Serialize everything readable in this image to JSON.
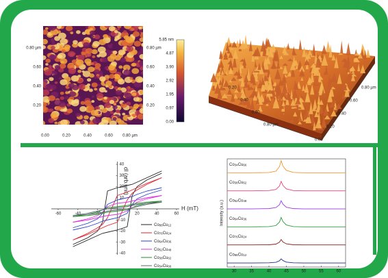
{
  "afm_2d": {
    "y_tick_labels": [
      "0.80 µm",
      "0.60",
      "0.40",
      "0.20"
    ],
    "x_tick_labels": [
      "0.00",
      "0.20",
      "0.40",
      "0.60",
      "0.80 µm"
    ]
  },
  "colorbar": {
    "ticks": [
      "5.85 nm",
      "4.87",
      "3.90",
      "2.92",
      "1.95",
      "0.97",
      "0.00"
    ]
  },
  "afm_3d": {
    "left_labels": [
      "0.20",
      "0.40",
      "0.60",
      "0.80 µm"
    ],
    "right_labels": [
      "0.80 µm",
      "0.60",
      "0.40",
      "0.20",
      "0.00"
    ]
  },
  "chart_data": [
    {
      "type": "line",
      "x_label": "H (mT)",
      "y_label": "dI (arb.unit)",
      "xlim": [
        -60,
        60
      ],
      "ylim": [
        -40,
        40
      ],
      "xticks": [
        -60,
        -40,
        -20,
        20,
        40,
        60
      ],
      "yticks": [
        -40,
        -30,
        -20,
        -10,
        10,
        20,
        30,
        40
      ],
      "x": [
        -45,
        -30,
        -20,
        -15,
        -10,
        0,
        10,
        15,
        20,
        30,
        45
      ],
      "series": [
        {
          "name": "Co88Cu12",
          "color": "#222222",
          "upper": [
            -32,
            -26,
            -20,
            -12,
            16,
            19,
            21,
            22,
            24,
            28,
            34
          ],
          "lower": [
            -34,
            -28,
            -24,
            -22,
            -21,
            -19,
            -16,
            12,
            20,
            26,
            32
          ]
        },
        {
          "name": "Co76Cu24",
          "color": "#e0202a",
          "upper": [
            -28,
            -22,
            -17,
            -14,
            -8,
            12,
            15,
            17,
            19,
            23,
            28
          ],
          "lower": [
            -28,
            -23,
            -19,
            -17,
            -15,
            -12,
            8,
            14,
            17,
            22,
            28
          ]
        },
        {
          "name": "Co64Cu36",
          "color": "#2a3fd0",
          "upper": [
            -17,
            -13,
            -9,
            -4,
            4,
            8,
            10,
            11,
            13,
            16,
            19
          ],
          "lower": [
            -19,
            -16,
            -13,
            -11,
            -10,
            -8,
            -4,
            4,
            9,
            13,
            17
          ]
        },
        {
          "name": "Co52Cu48",
          "color": "#e030e0",
          "upper": [
            -12,
            -9,
            -6,
            -3,
            2,
            5,
            6,
            7,
            8,
            10,
            12
          ],
          "lower": [
            -12,
            -10,
            -8,
            -7,
            -6,
            -5,
            -2,
            3,
            6,
            9,
            12
          ]
        },
        {
          "name": "Co38Cu62",
          "color": "#2a8a2a",
          "upper": [
            -7,
            -5,
            -3,
            -1,
            1,
            2,
            3,
            4,
            5,
            6,
            7
          ],
          "lower": [
            -7,
            -6,
            -5,
            -4,
            -3,
            -2,
            -1,
            1,
            3,
            5,
            7
          ]
        },
        {
          "name": "Co34Cu66",
          "color": "#556b6b",
          "upper": [
            -6,
            -4,
            -2,
            -1,
            0,
            1,
            2,
            3,
            4,
            5,
            6
          ],
          "lower": [
            -6,
            -5,
            -4,
            -3,
            -2,
            -1,
            0,
            1,
            2,
            4,
            6
          ]
        }
      ]
    },
    {
      "type": "stacked-line",
      "y_label": "Intensity (a.u.)",
      "xlim": [
        28,
        62
      ],
      "xticks": [
        30,
        35,
        40,
        45,
        50,
        55,
        60
      ],
      "x": [
        28,
        35,
        40,
        42,
        43,
        43.5,
        44,
        45,
        47,
        50,
        55,
        62
      ],
      "series": [
        {
          "name": "Co34Cu66",
          "color": "#f0962a",
          "values": [
            0.1,
            0.1,
            0.12,
            0.22,
            0.55,
            1.0,
            0.6,
            0.28,
            0.13,
            0.1,
            0.1,
            0.1
          ]
        },
        {
          "name": "Co38Cu62",
          "color": "#e8407a",
          "values": [
            0.1,
            0.1,
            0.12,
            0.2,
            0.45,
            0.8,
            0.5,
            0.24,
            0.12,
            0.1,
            0.1,
            0.1
          ]
        },
        {
          "name": "Co52Cu48",
          "color": "#9a3ae0",
          "values": [
            0.1,
            0.1,
            0.12,
            0.2,
            0.4,
            0.7,
            0.45,
            0.22,
            0.12,
            0.1,
            0.1,
            0.1
          ]
        },
        {
          "name": "Co64Cu36",
          "color": "#2a9a3a",
          "values": [
            0.1,
            0.1,
            0.12,
            0.2,
            0.45,
            0.8,
            0.5,
            0.24,
            0.12,
            0.1,
            0.1,
            0.1
          ]
        },
        {
          "name": "Co76Cu24",
          "color": "#8a1a1a",
          "values": [
            0.1,
            0.1,
            0.11,
            0.16,
            0.3,
            0.5,
            0.32,
            0.18,
            0.11,
            0.1,
            0.1,
            0.1
          ]
        },
        {
          "name": "Co88Cu12",
          "color": "#1a2a8a",
          "values": [
            0.1,
            0.1,
            0.11,
            0.15,
            0.26,
            0.4,
            0.28,
            0.16,
            0.11,
            0.1,
            0.1,
            0.1
          ]
        }
      ]
    }
  ]
}
